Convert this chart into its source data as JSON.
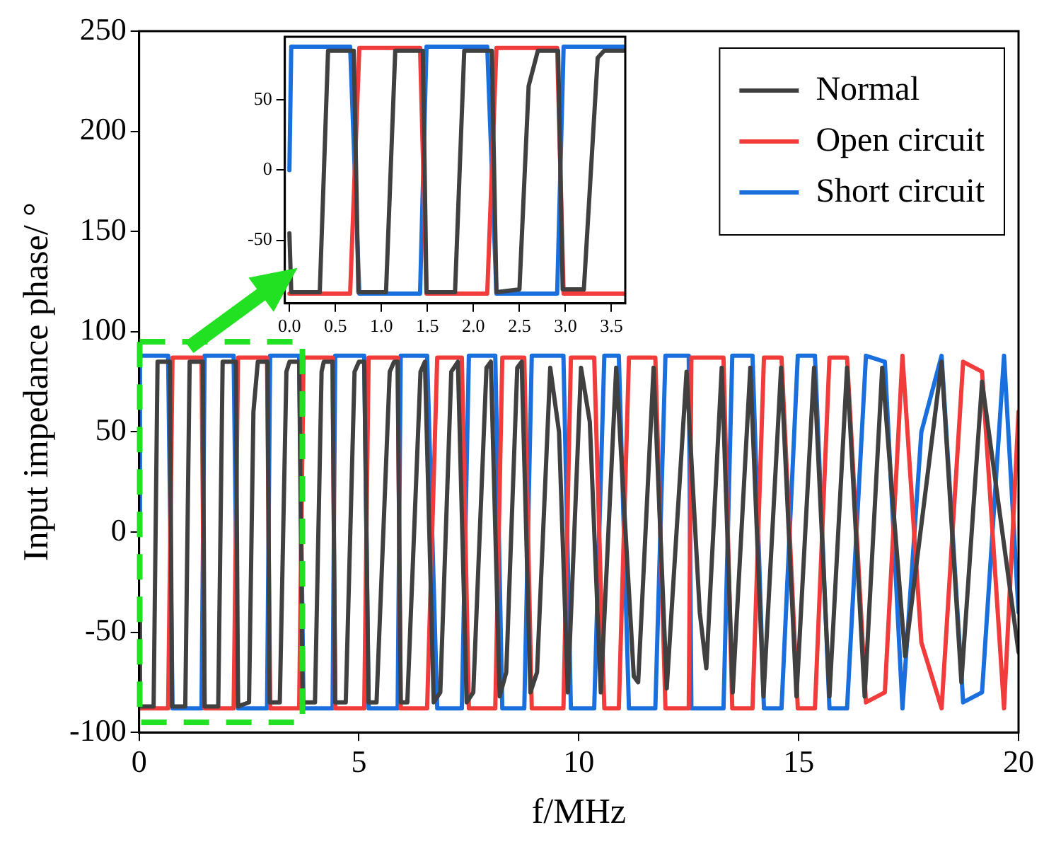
{
  "chart_data": [
    {
      "type": "line",
      "xlabel": "f/MHz",
      "ylabel": "Input impedance phase/ °",
      "xlim": [
        0,
        20
      ],
      "ylim": [
        -100,
        250
      ],
      "xticks": [
        0,
        5,
        10,
        15,
        20
      ],
      "yticks": [
        -100,
        -50,
        0,
        50,
        100,
        150,
        200,
        250
      ],
      "legend": "top right",
      "series": [
        {
          "name": "Normal",
          "color": "#404040",
          "x": [
            0,
            0.02,
            0.33,
            0.42,
            0.7,
            0.75,
            1.05,
            1.15,
            1.45,
            1.49,
            1.8,
            1.9,
            2.2,
            2.25,
            2.5,
            2.6,
            2.7,
            2.92,
            2.97,
            3.2,
            3.35,
            3.42,
            3.64,
            3.72,
            4.0,
            4.15,
            4.2,
            4.4,
            4.46,
            4.7,
            4.9,
            5.0,
            5.12,
            5.22,
            5.4,
            5.7,
            5.8,
            5.88,
            5.95,
            6.1,
            6.4,
            6.5,
            6.7,
            6.85,
            7.1,
            7.25,
            7.45,
            7.6,
            7.9,
            8.0,
            8.2,
            8.35,
            8.6,
            8.7,
            8.9,
            9.05,
            9.35,
            9.55,
            9.75,
            10.05,
            10.25,
            10.5,
            10.85,
            11.25,
            11.35,
            11.7,
            12.0,
            12.45,
            12.75,
            12.9,
            13.25,
            13.5,
            13.9,
            14.2,
            14.6,
            14.95,
            15.35,
            15.7,
            16.1,
            16.5,
            16.9,
            17.42,
            18.25,
            18.7,
            19.17,
            20
          ],
          "values": [
            -45,
            -87,
            -87,
            85,
            85,
            -87,
            -87,
            85,
            85,
            -87,
            -87,
            85,
            85,
            -87,
            -85,
            60,
            85,
            85,
            -85,
            -85,
            80,
            85,
            85,
            -85,
            -85,
            80,
            85,
            85,
            -85,
            -85,
            80,
            85,
            85,
            -85,
            -85,
            80,
            85,
            85,
            -85,
            -85,
            80,
            85,
            -85,
            -80,
            80,
            85,
            -85,
            -80,
            82,
            85,
            -82,
            -70,
            82,
            85,
            -80,
            -70,
            82,
            50,
            -80,
            82,
            55,
            -80,
            82,
            -72,
            -75,
            82,
            -78,
            80,
            -40,
            -68,
            82,
            -80,
            82,
            -82,
            82,
            -82,
            82,
            -82,
            82,
            -82,
            82,
            -62,
            85,
            -75,
            75,
            -60
          ]
        },
        {
          "name": "Open circuit",
          "color": "#f23b3b",
          "x": [
            0,
            0.66,
            0.76,
            1.42,
            1.49,
            2.15,
            2.25,
            2.91,
            2.98,
            3.64,
            3.74,
            4.4,
            4.46,
            5.12,
            5.22,
            5.88,
            5.95,
            6.55,
            6.78,
            7.34,
            7.5,
            8.1,
            8.26,
            8.76,
            8.93,
            9.65,
            9.82,
            10.35,
            10.58,
            10.91,
            11.14,
            11.74,
            11.97,
            12.5,
            12.56,
            13.29,
            13.49,
            13.95,
            14.21,
            14.61,
            14.98,
            15.37,
            15.7,
            16.1,
            16.53,
            16.96,
            17.36,
            17.79,
            18.25,
            18.74,
            19.17,
            19.67,
            20
          ],
          "values": [
            -88,
            -88,
            87,
            87,
            -88,
            -88,
            87,
            87,
            -88,
            -88,
            87,
            87,
            -88,
            -88,
            87,
            87,
            -88,
            -88,
            87,
            87,
            -88,
            -88,
            87,
            87,
            -88,
            -88,
            87,
            87,
            -88,
            -88,
            87,
            87,
            -88,
            -88,
            87,
            87,
            -88,
            -88,
            87,
            87,
            -88,
            -88,
            87,
            87,
            -85,
            -80,
            88,
            -55,
            -88,
            85,
            80,
            -88,
            60
          ]
        },
        {
          "name": "Short circuit",
          "color": "#1a6fdf",
          "x": [
            0,
            0.02,
            0.66,
            0.76,
            1.42,
            1.49,
            2.15,
            2.25,
            2.91,
            2.98,
            3.64,
            3.74,
            4.4,
            4.46,
            5.12,
            5.22,
            5.88,
            5.95,
            6.55,
            6.78,
            7.34,
            7.5,
            8.1,
            8.26,
            8.76,
            8.93,
            9.65,
            9.82,
            10.35,
            10.58,
            10.91,
            11.14,
            11.74,
            11.97,
            12.5,
            12.56,
            13.29,
            13.49,
            13.95,
            14.21,
            14.61,
            14.98,
            15.37,
            15.7,
            16.1,
            16.53,
            16.96,
            17.36,
            17.79,
            18.25,
            18.74,
            19.17,
            19.67,
            20
          ],
          "values": [
            0,
            88,
            88,
            -88,
            -88,
            88,
            88,
            -88,
            -88,
            88,
            88,
            -88,
            -88,
            88,
            88,
            -88,
            -88,
            88,
            88,
            -88,
            -88,
            88,
            88,
            -88,
            -88,
            88,
            88,
            -88,
            -88,
            88,
            88,
            -88,
            -88,
            88,
            88,
            -88,
            -88,
            88,
            88,
            -88,
            -88,
            88,
            88,
            -88,
            -88,
            88,
            85,
            -88,
            50,
            88,
            -85,
            -80,
            88,
            -40
          ]
        }
      ]
    },
    {
      "type": "line",
      "xlim": [
        -0.05,
        3.65
      ],
      "ylim": [
        -95,
        95
      ],
      "xticks": [
        {
          "value": 0,
          "label": "0.0"
        },
        {
          "value": 0.5,
          "label": "0.5"
        },
        {
          "value": 1,
          "label": "1.0"
        },
        {
          "value": 1.5,
          "label": "1.5"
        },
        {
          "value": 2,
          "label": "2.0"
        },
        {
          "value": 2.5,
          "label": "2.5"
        },
        {
          "value": 3,
          "label": "3.0"
        },
        {
          "value": 3.5,
          "label": "3.5"
        }
      ],
      "yticks": [
        -50,
        0,
        50
      ],
      "series": [
        {
          "color": "#404040",
          "x": [
            0,
            0.02,
            0.33,
            0.42,
            0.7,
            0.75,
            1.05,
            1.15,
            1.45,
            1.49,
            1.8,
            1.9,
            2.2,
            2.25,
            2.5,
            2.6,
            2.7,
            2.92,
            2.97,
            3.2,
            3.35,
            3.42,
            3.64
          ],
          "values": [
            -45,
            -87,
            -87,
            85,
            85,
            -87,
            -87,
            85,
            85,
            -87,
            -87,
            85,
            85,
            -87,
            -85,
            60,
            85,
            85,
            -85,
            -85,
            80,
            85,
            85
          ]
        },
        {
          "color": "#f23b3b",
          "x": [
            0,
            0.66,
            0.76,
            1.42,
            1.49,
            2.15,
            2.25,
            2.91,
            2.98,
            3.64
          ],
          "values": [
            -88,
            -88,
            87,
            87,
            -88,
            -88,
            87,
            87,
            -88,
            -88
          ]
        },
        {
          "color": "#1a6fdf",
          "x": [
            0,
            0.02,
            0.66,
            0.76,
            1.42,
            1.49,
            2.15,
            2.25,
            2.91,
            2.98,
            3.64
          ],
          "values": [
            0,
            88,
            88,
            -88,
            -88,
            88,
            88,
            -88,
            -88,
            88,
            88
          ]
        }
      ]
    }
  ]
}
